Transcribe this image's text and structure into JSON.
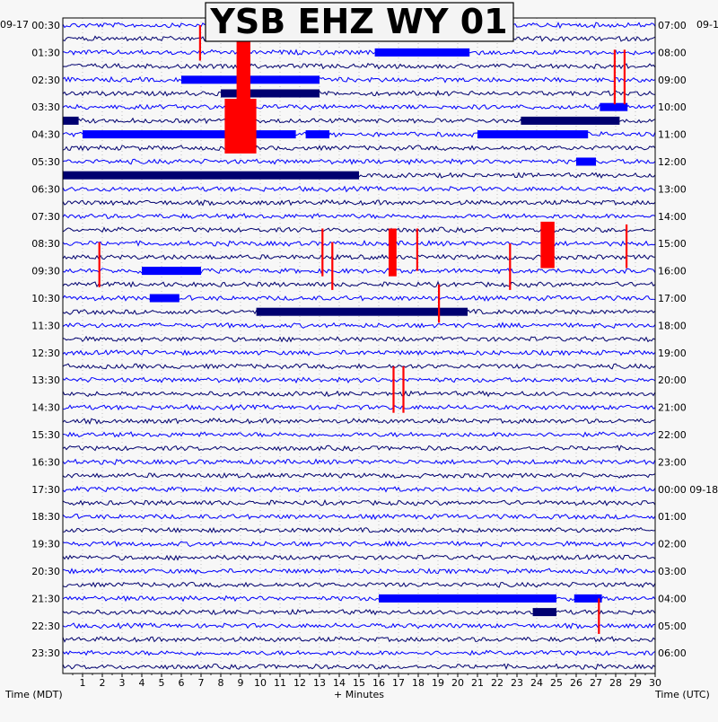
{
  "chart_data": {
    "type": "line",
    "title": "YSB EHZ WY 01",
    "xlabel": "+ Minutes",
    "left_axis_label": "Time (MDT)",
    "right_axis_label": "Time (UTC)",
    "left_date_label": "09-17",
    "right_date_label": "09-1",
    "xlim": [
      0,
      30
    ],
    "x_ticks": [
      "1",
      "2",
      "3",
      "4",
      "5",
      "6",
      "7",
      "8",
      "9",
      "10",
      "11",
      "12",
      "13",
      "14",
      "15",
      "16",
      "17",
      "18",
      "19",
      "20",
      "21",
      "22",
      "23",
      "24",
      "25",
      "26",
      "27",
      "28",
      "29",
      "30"
    ],
    "left_row_labels": [
      "00:30",
      "01:30",
      "02:30",
      "03:30",
      "04:30",
      "05:30",
      "06:30",
      "07:30",
      "08:30",
      "09:30",
      "10:30",
      "11:30",
      "12:30",
      "13:30",
      "14:30",
      "15:30",
      "16:30",
      "17:30",
      "18:30",
      "19:30",
      "20:30",
      "21:30",
      "22:30",
      "23:30"
    ],
    "right_row_labels": [
      "07:00",
      "08:00",
      "09:00",
      "10:00",
      "11:00",
      "12:00",
      "13:00",
      "14:00",
      "15:00",
      "16:00",
      "17:00",
      "18:00",
      "19:00",
      "20:00",
      "21:00",
      "22:00",
      "23:00",
      "00:00 09-18",
      "01:00",
      "02:00",
      "03:00",
      "04:00",
      "05:00",
      "06:00"
    ],
    "trace_count": 48,
    "grid": true,
    "colors": {
      "trace_a": "#0000ff",
      "trace_b": "#000070",
      "event": "#ff0000"
    },
    "events": [
      {
        "row": 0,
        "start_min": 6.9,
        "end_min": 7.0,
        "up_rows": 0,
        "down_rows": 2.6
      },
      {
        "row": 1,
        "start_min": 8.8,
        "end_min": 9.5,
        "up_rows": 0.8,
        "down_rows": 8
      },
      {
        "row": 6,
        "start_min": 8.2,
        "end_min": 9.8,
        "up_rows": 0.6,
        "down_rows": 3.4
      },
      {
        "row": 3,
        "start_min": 27.9,
        "end_min": 28.0,
        "up_rows": 1.2,
        "down_rows": 2.8
      },
      {
        "row": 3,
        "start_min": 28.4,
        "end_min": 28.5,
        "up_rows": 1.2,
        "down_rows": 2.8
      },
      {
        "row": 16,
        "start_min": 1.8,
        "end_min": 1.9,
        "up_rows": 0.1,
        "down_rows": 3.2
      },
      {
        "row": 15,
        "start_min": 13.1,
        "end_min": 13.2,
        "up_rows": 0.1,
        "down_rows": 3.4
      },
      {
        "row": 16,
        "start_min": 13.6,
        "end_min": 13.7,
        "up_rows": 0.1,
        "down_rows": 3.4
      },
      {
        "row": 15,
        "start_min": 16.5,
        "end_min": 16.9,
        "up_rows": 0.1,
        "down_rows": 3.4
      },
      {
        "row": 15,
        "start_min": 17.9,
        "end_min": 18.0,
        "up_rows": 0.1,
        "down_rows": 3.0
      },
      {
        "row": 19,
        "start_min": 19.0,
        "end_min": 19.1,
        "up_rows": 0,
        "down_rows": 2.8
      },
      {
        "row": 16,
        "start_min": 22.6,
        "end_min": 22.7,
        "up_rows": 0,
        "down_rows": 3.4
      },
      {
        "row": 15,
        "start_min": 24.2,
        "end_min": 24.9,
        "up_rows": 0.6,
        "down_rows": 2.8
      },
      {
        "row": 15,
        "start_min": 28.5,
        "end_min": 28.6,
        "up_rows": 0.4,
        "down_rows": 2.8
      },
      {
        "row": 25,
        "start_min": 16.7,
        "end_min": 16.8,
        "up_rows": 0,
        "down_rows": 3.4
      },
      {
        "row": 25,
        "start_min": 17.2,
        "end_min": 17.3,
        "up_rows": 0,
        "down_rows": 3.4
      },
      {
        "row": 42,
        "start_min": 27.1,
        "end_min": 27.2,
        "up_rows": 0,
        "down_rows": 2.6
      }
    ],
    "bursts": [
      {
        "row": 2,
        "start_min": 15.8,
        "end_min": 20.6
      },
      {
        "row": 4,
        "start_min": 6.0,
        "end_min": 13.0
      },
      {
        "row": 5,
        "start_min": 8.0,
        "end_min": 13.0
      },
      {
        "row": 7,
        "start_min": 0.0,
        "end_min": 0.8
      },
      {
        "row": 8,
        "start_min": 1.0,
        "end_min": 11.8
      },
      {
        "row": 8,
        "start_min": 12.3,
        "end_min": 13.5
      },
      {
        "row": 8,
        "start_min": 21.0,
        "end_min": 26.6
      },
      {
        "row": 7,
        "start_min": 23.2,
        "end_min": 28.2
      },
      {
        "row": 6,
        "start_min": 27.2,
        "end_min": 28.6
      },
      {
        "row": 10,
        "start_min": 26.0,
        "end_min": 27.0
      },
      {
        "row": 11,
        "start_min": 0.0,
        "end_min": 15.0
      },
      {
        "row": 18,
        "start_min": 4.0,
        "end_min": 7.0
      },
      {
        "row": 20,
        "start_min": 4.4,
        "end_min": 5.9
      },
      {
        "row": 21,
        "start_min": 9.8,
        "end_min": 20.5
      },
      {
        "row": 42,
        "start_min": 16.0,
        "end_min": 25.0
      },
      {
        "row": 42,
        "start_min": 25.9,
        "end_min": 27.3
      },
      {
        "row": 43,
        "start_min": 23.8,
        "end_min": 25.0
      }
    ]
  }
}
